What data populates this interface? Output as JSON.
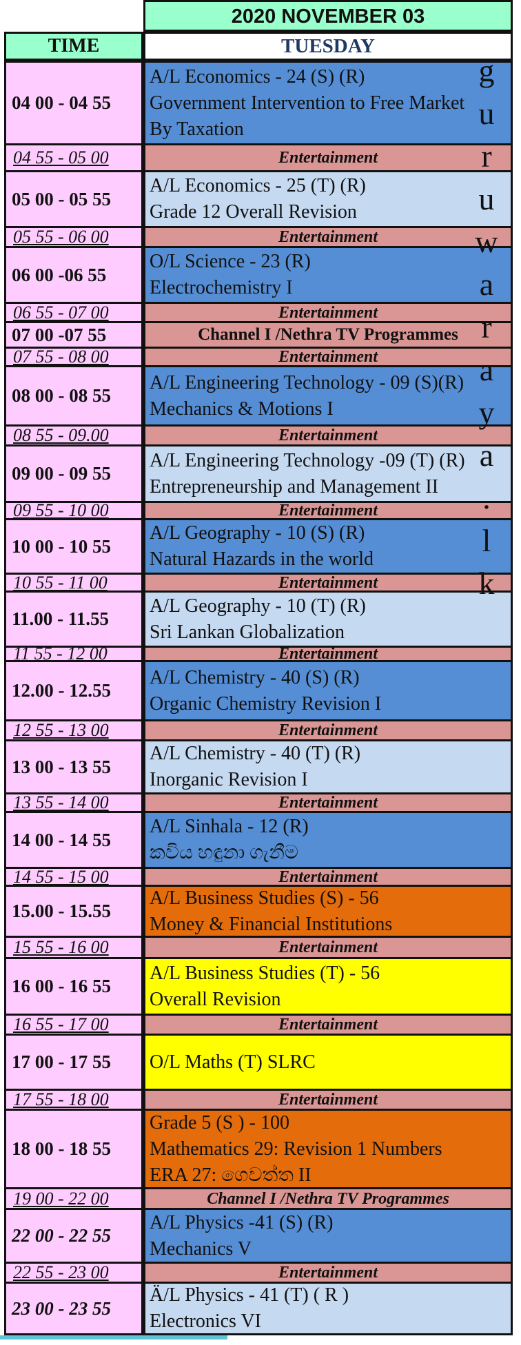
{
  "header": {
    "date": "2020 NOVEMBER  03",
    "time_col": "TIME",
    "day": "TUESDAY"
  },
  "watermark": [
    "g",
    "u",
    "r",
    "u",
    "w",
    "a",
    "r",
    "a",
    "y",
    "a",
    ".",
    "l",
    "k"
  ],
  "rows": [
    {
      "time": "04 00 - 04 55",
      "kind": "prog",
      "bg": "dark",
      "l1": "A/L Economics  - 24  (S) (R)",
      "l2": "Government Intervention to Free Market",
      "l3": "By Taxation"
    },
    {
      "time": "04 55 - 05 00",
      "kind": "ent",
      "text": "Entertainment"
    },
    {
      "time": "05 00 - 05 55",
      "kind": "prog",
      "bg": "light",
      "l1": "A/L Economics  - 25 (T) (R)",
      "l2": "Grade 12 Overall Revision"
    },
    {
      "time": "05 55 - 06 00",
      "kind": "ent",
      "text": "Entertainment"
    },
    {
      "time": "06 00 -06 55",
      "kind": "prog",
      "bg": "dark",
      "l1": "O/L Science - 23  (R)",
      "l2": "Electrochemistry I"
    },
    {
      "time": "06 55 - 07 00",
      "kind": "ent",
      "text": "Entertainment"
    },
    {
      "time": "07 00 -07 55",
      "kind": "chan",
      "text": "Channel I /Nethra TV Programmes"
    },
    {
      "time": "07 55 - 08 00",
      "kind": "ent",
      "text": "Entertainment"
    },
    {
      "time": "08 00 - 08 55",
      "kind": "prog",
      "bg": "dark",
      "l1": "A/L Engineering Technology - 09 (S)(R)",
      "l2": "Mechanics & Motions I"
    },
    {
      "time": "08 55 - 09.00",
      "kind": "ent",
      "text": "Entertainment"
    },
    {
      "time": "09 00 - 09 55",
      "kind": "prog",
      "bg": "light",
      "l1": "A/L Engineering Technology -09 (T) (R)",
      "l2": "Entrepreneurship and Management II"
    },
    {
      "time": "09 55 - 10 00",
      "kind": "ent",
      "text": "Entertainment"
    },
    {
      "time": "10 00  - 10 55",
      "kind": "prog",
      "bg": "dark",
      "l1": "A/L Geography - 10 (S) (R)",
      "l2": "Natural Hazards in the world"
    },
    {
      "time": "10 55 - 11 00",
      "kind": "ent",
      "text": "Entertainment"
    },
    {
      "time": "11.00 - 11.55",
      "kind": "prog",
      "bg": "light",
      "l1": "A/L Geography - 10 (T) (R)",
      "l2": "Sri Lankan Globalization"
    },
    {
      "time": "11 55 - 12 00",
      "kind": "ent",
      "text": "Entertainment"
    },
    {
      "time": "12.00 - 12.55",
      "kind": "prog",
      "bg": "dark",
      "l1": "A/L Chemistry - 40 (S) (R)",
      "l2": "Organic Chemistry Revision I"
    },
    {
      "time": "12 55 - 13 00",
      "kind": "ent",
      "text": "Entertainment"
    },
    {
      "time": "13 00 - 13 55",
      "kind": "prog",
      "bg": "light",
      "l1": "A/L Chemistry - 40 (T) (R)",
      "l2": "Inorganic Revision I"
    },
    {
      "time": "13 55 - 14 00",
      "kind": "ent",
      "text": "Entertainment"
    },
    {
      "time": "14 00 - 14 55",
      "kind": "prog",
      "bg": "dark",
      "l1": "A/L Sinhala - 12  (R)",
      "l2": "කවිය හඳුනා ගැනීම"
    },
    {
      "time": "14 55 - 15 00",
      "kind": "ent",
      "text": "Entertainment"
    },
    {
      "time": "15.00 - 15.55",
      "kind": "prog",
      "bg": "orange",
      "l1": "A/L Business Studies (S) - 56",
      "l2": "Money & Financial Institutions"
    },
    {
      "time": "15 55 - 16 00",
      "kind": "ent",
      "text": "Entertainment"
    },
    {
      "time": "16 00 - 16 55",
      "kind": "prog",
      "bg": "yellow",
      "l1": "A/L Business Studies (T) -  56",
      "l2": "Overall Revision"
    },
    {
      "time": "16 55 - 17 00",
      "kind": "ent",
      "text": "Entertainment"
    },
    {
      "time": "17 00 - 17 55",
      "kind": "prog",
      "bg": "yellow",
      "l1": "O/L Maths (T)  SLRC"
    },
    {
      "time": "17 55 - 18 00",
      "kind": "ent",
      "text": "Entertainment"
    },
    {
      "time": "18 00 - 18 55",
      "kind": "prog",
      "bg": "orange",
      "l1": "Grade 5 (S ) -  100",
      "l2": "Mathematics 29: Revision 1 Numbers",
      "l3": "ERA 27: ගෙවත්ත II"
    },
    {
      "time": "19 00 - 22 00",
      "kind": "ent",
      "text": "Channel I /Nethra TV Programmes"
    },
    {
      "time": "22 00 - 22 55",
      "kind": "prog",
      "bg": "dark",
      "l1": "A/L Physics -41 (S) (R)",
      "l2": "Mechanics V"
    },
    {
      "time": "22 55 - 23 00",
      "kind": "ent",
      "text": "Entertainment"
    },
    {
      "time": "23 00 - 23 55",
      "kind": "prog",
      "bg": "light",
      "l1": "Ä/L Physics - 41 (T) ( R )",
      "l2": "Electronics VI"
    }
  ],
  "colors": {
    "time_bg": "#ffccff",
    "header_bg": "#99ffcc",
    "entertainment_bg": "#da9694",
    "dark_blue": "#558ed5",
    "light_blue": "#c5d9f1",
    "orange": "#e46c0a",
    "yellow": "#ffff00"
  }
}
